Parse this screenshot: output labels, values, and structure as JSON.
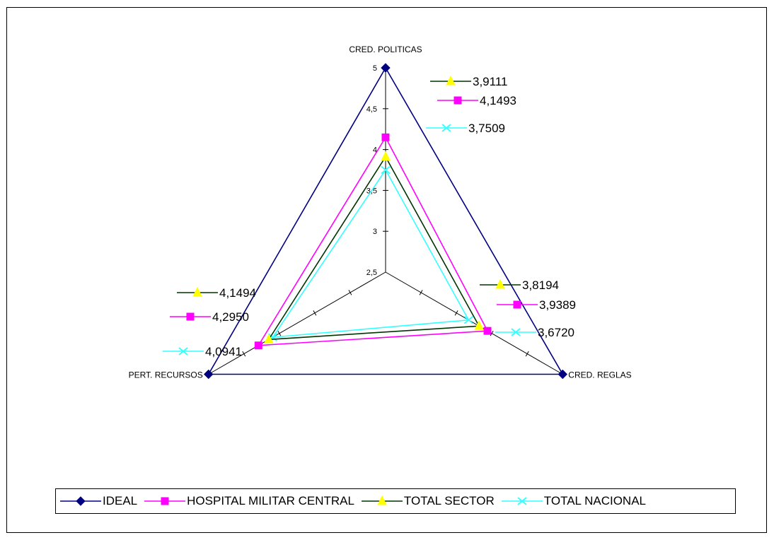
{
  "chart_data": {
    "type": "radar",
    "axes": [
      "CRED. POLITICAS",
      "CRED. REGLAS",
      "PERT. RECURSOS"
    ],
    "r_ticks": [
      "2,5",
      "3",
      "3,5",
      "4",
      "4,5",
      "5"
    ],
    "r_range": [
      2.5,
      5
    ],
    "series": [
      {
        "name": "IDEAL",
        "values": [
          5,
          5,
          5
        ],
        "color": "#000080",
        "marker": "diamond",
        "show_labels": false
      },
      {
        "name": "HOSPITAL MILITAR CENTRAL",
        "values": [
          4.1493,
          3.9389,
          4.295
        ],
        "labels": [
          "4,1493",
          "3,9389",
          "4,2950"
        ],
        "color": "#FF00FF",
        "marker": "square",
        "show_labels": true
      },
      {
        "name": "TOTAL SECTOR",
        "values": [
          3.9111,
          3.8194,
          4.1494
        ],
        "labels": [
          "3,9111",
          "3,8194",
          "4,1494"
        ],
        "color": "#003300",
        "marker_color": "#FFFF00",
        "marker": "triangle",
        "show_labels": true
      },
      {
        "name": "TOTAL NACIONAL",
        "values": [
          3.7509,
          3.672,
          4.0941
        ],
        "labels": [
          "3,7509",
          "3,6720",
          "4,0941"
        ],
        "color": "#33FFFF",
        "marker": "x",
        "show_labels": true
      }
    ],
    "legend_position": "bottom"
  }
}
